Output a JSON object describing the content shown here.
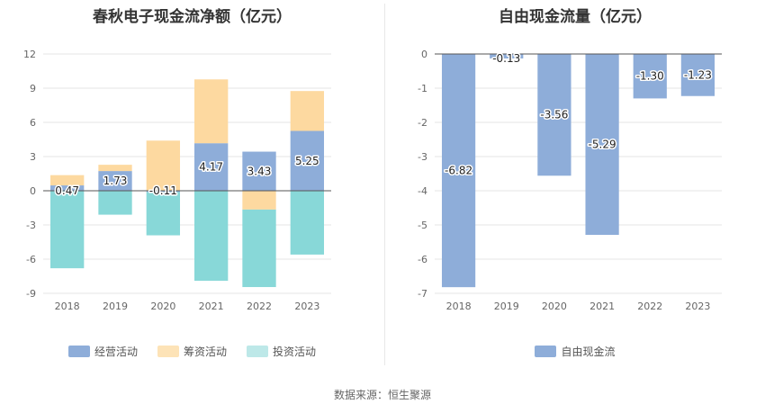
{
  "source_note": "数据来源：恒生聚源",
  "colors": {
    "operating": "#8eadd9",
    "financing": "#fdd9a0",
    "investing": "#88d8d8",
    "fcf": "#8eadd9"
  },
  "chart_data": [
    {
      "type": "bar",
      "title": "春秋电子现金流净额（亿元）",
      "categories": [
        "2018",
        "2019",
        "2020",
        "2021",
        "2022",
        "2023"
      ],
      "ylim": [
        -9,
        12
      ],
      "yticks": [
        12,
        9,
        6,
        3,
        0,
        -3,
        -6,
        -9
      ],
      "ytick_labels": [
        "12",
        "9",
        "6",
        "3",
        "0",
        "-3",
        "-6",
        "-9"
      ],
      "series": [
        {
          "name": "经营活动",
          "values": [
            0.47,
            1.73,
            -0.11,
            4.17,
            3.43,
            5.25
          ]
        },
        {
          "name": "筹资活动",
          "values": [
            0.9,
            0.55,
            4.4,
            5.6,
            -1.65,
            3.5
          ]
        },
        {
          "name": "投资活动",
          "values": [
            -6.8,
            -2.1,
            -3.8,
            -7.9,
            -6.8,
            -5.6
          ]
        }
      ],
      "data_labels": [
        "0.47",
        "1.73",
        "-0.11",
        "4.17",
        "3.43",
        "5.25"
      ],
      "legend_position": "bottom"
    },
    {
      "type": "bar",
      "title": "自由现金流量（亿元）",
      "categories": [
        "2018",
        "2019",
        "2020",
        "2021",
        "2022",
        "2023"
      ],
      "ylim": [
        -7,
        0
      ],
      "yticks": [
        0,
        -1,
        -2,
        -3,
        -4,
        -5,
        -6,
        -7
      ],
      "ytick_labels": [
        "0",
        "-1",
        "-2",
        "-3",
        "-4",
        "-5",
        "-6",
        "-7"
      ],
      "series": [
        {
          "name": "自由现金流",
          "values": [
            -6.82,
            -0.13,
            -3.56,
            -5.29,
            -1.3,
            -1.23
          ]
        }
      ],
      "data_labels": [
        "-6.82",
        "-0.13",
        "-3.56",
        "-5.29",
        "-1.30",
        "-1.23"
      ],
      "legend_position": "bottom"
    }
  ]
}
